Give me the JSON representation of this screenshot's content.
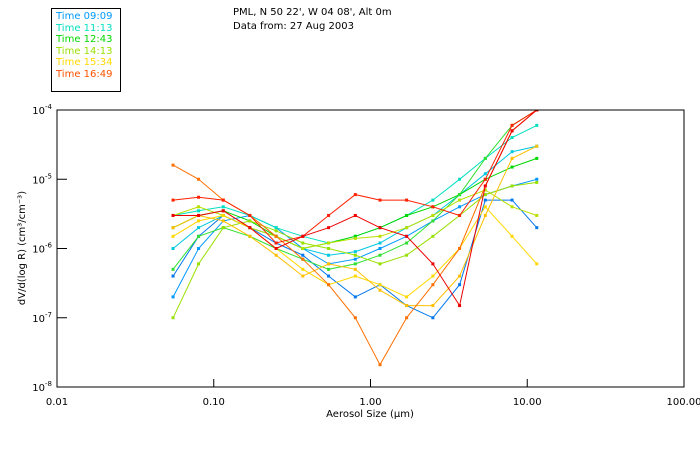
{
  "header": {
    "line1": "PML, N 50 22', W 04 08', Alt 0m",
    "line2": "Data from: 27 Aug 2003"
  },
  "legend": [
    {
      "label": "Time 09:09",
      "color": "#0099ff"
    },
    {
      "label": "Time 11:13",
      "color": "#00e0c0"
    },
    {
      "label": "Time 12:43",
      "color": "#00d800"
    },
    {
      "label": "Time 14:13",
      "color": "#99e000"
    },
    {
      "label": "Time 15:34",
      "color": "#ffd800"
    },
    {
      "label": "Time 16:49",
      "color": "#ff5000"
    }
  ],
  "chart_data": {
    "type": "line",
    "xscale": "log",
    "yscale": "log",
    "xlabel": "Aerosol Size (µm)",
    "ylabel": "dV/d(log R)  (cm³/cm⁻³)",
    "xlim": [
      0.01,
      100
    ],
    "ylim": [
      1e-08,
      0.0001
    ],
    "xticks": [
      {
        "value": 0.01,
        "label": "0.01"
      },
      {
        "value": 0.1,
        "label": "0.10"
      },
      {
        "value": 1,
        "label": "1.00"
      },
      {
        "value": 10,
        "label": "10.00"
      },
      {
        "value": 100,
        "label": "100.00"
      }
    ],
    "yticks": [
      {
        "value": 0.0001,
        "base": "10",
        "exp": "-4"
      },
      {
        "value": 1e-05,
        "base": "10",
        "exp": "-5"
      },
      {
        "value": 1e-06,
        "base": "10",
        "exp": "-6"
      },
      {
        "value": 1e-07,
        "base": "10",
        "exp": "-7"
      },
      {
        "value": 1e-08,
        "base": "10",
        "exp": "-8"
      }
    ],
    "x": [
      0.055,
      0.08,
      0.115,
      0.17,
      0.25,
      0.37,
      0.54,
      0.8,
      1.15,
      1.7,
      2.5,
      3.7,
      5.4,
      8,
      11.5
    ],
    "series": [
      {
        "name": "09:09 a",
        "color": "#0099ff",
        "values": [
          2e-07,
          1e-06,
          2.5e-06,
          3e-06,
          2e-06,
          1e-06,
          6e-07,
          7e-07,
          1e-06,
          1.5e-06,
          2.5e-06,
          4e-06,
          6e-06,
          8e-06,
          1e-05
        ]
      },
      {
        "name": "09:09 b",
        "color": "#0077ee",
        "values": [
          4e-07,
          1.5e-06,
          3e-06,
          2e-06,
          1.2e-06,
          8e-07,
          4e-07,
          2e-07,
          3e-07,
          1.5e-07,
          1e-07,
          3e-07,
          5e-06,
          5e-06,
          2e-06
        ]
      },
      {
        "name": "11:13 a",
        "color": "#00e0c0",
        "values": [
          3e-06,
          3.5e-06,
          4e-06,
          3e-06,
          2e-06,
          1.5e-06,
          1.2e-06,
          1.5e-06,
          2e-06,
          3e-06,
          5e-06,
          1e-05,
          2e-05,
          4e-05,
          6e-05
        ]
      },
      {
        "name": "11:13 b",
        "color": "#00c8e0",
        "values": [
          1e-06,
          2e-06,
          3e-06,
          2e-06,
          1.5e-06,
          1e-06,
          8e-07,
          9e-07,
          1.2e-06,
          2e-06,
          3e-06,
          6e-06,
          1.2e-05,
          2.5e-05,
          3e-05
        ]
      },
      {
        "name": "12:43 a",
        "color": "#00d800",
        "values": [
          2e-06,
          3e-06,
          3.5e-06,
          2.5e-06,
          1.5e-06,
          1e-06,
          1.2e-06,
          1.5e-06,
          2e-06,
          3e-06,
          4e-06,
          6e-06,
          1e-05,
          1.5e-05,
          2e-05
        ]
      },
      {
        "name": "12:43 b",
        "color": "#30e030",
        "values": [
          5e-07,
          1.5e-06,
          2e-06,
          1.5e-06,
          1e-06,
          7e-07,
          5e-07,
          6e-07,
          8e-07,
          1.2e-06,
          2.5e-06,
          6e-06,
          2e-05,
          6e-05,
          0.0001
        ]
      },
      {
        "name": "14:13 a",
        "color": "#99e000",
        "values": [
          1e-07,
          6e-07,
          2e-06,
          2.5e-06,
          1.8e-06,
          1.2e-06,
          1e-06,
          8e-07,
          6e-07,
          8e-07,
          1.5e-06,
          3e-06,
          6e-06,
          8e-06,
          9e-06
        ]
      },
      {
        "name": "14:13 b",
        "color": "#b8e000",
        "values": [
          3e-06,
          4e-06,
          3e-06,
          2e-06,
          1.5e-06,
          1e-06,
          1.2e-06,
          1.4e-06,
          1.5e-06,
          2e-06,
          3e-06,
          5e-06,
          7e-06,
          4e-06,
          3e-06
        ]
      },
      {
        "name": "15:34 a",
        "color": "#ffd800",
        "values": [
          1.5e-06,
          2.5e-06,
          3e-06,
          2e-06,
          1e-06,
          5e-07,
          3e-07,
          4e-07,
          3e-07,
          2e-07,
          4e-07,
          1e-06,
          4e-06,
          1.5e-06,
          6e-07
        ]
      },
      {
        "name": "15:34 b",
        "color": "#ffc000",
        "values": [
          2e-06,
          3e-06,
          2.5e-06,
          1.5e-06,
          8e-07,
          4e-07,
          6e-07,
          5e-07,
          2.5e-07,
          1.5e-07,
          1.5e-07,
          4e-07,
          3e-06,
          2e-05,
          3e-05
        ]
      },
      {
        "name": "16:49 a",
        "color": "#ff7000",
        "values": [
          1.6e-05,
          1e-05,
          5e-06,
          3e-06,
          1.5e-06,
          7e-07,
          3e-07,
          1e-07,
          2.1e-08,
          1e-07,
          3e-07,
          1e-06,
          8e-06,
          5e-05,
          0.0001
        ]
      },
      {
        "name": "16:49 b",
        "color": "#ff2000",
        "values": [
          5e-06,
          5.5e-06,
          5e-06,
          3e-06,
          1.2e-06,
          1.5e-06,
          3e-06,
          6e-06,
          5e-06,
          5e-06,
          4e-06,
          3e-06,
          1e-05,
          6e-05,
          0.0001
        ]
      },
      {
        "name": "16:49 c",
        "color": "#ee0000",
        "values": [
          3e-06,
          3e-06,
          3.5e-06,
          2e-06,
          1e-06,
          1.5e-06,
          2e-06,
          3e-06,
          2e-06,
          1.5e-06,
          6e-07,
          1.5e-07,
          8e-06,
          5e-05,
          0.0001
        ]
      }
    ]
  }
}
